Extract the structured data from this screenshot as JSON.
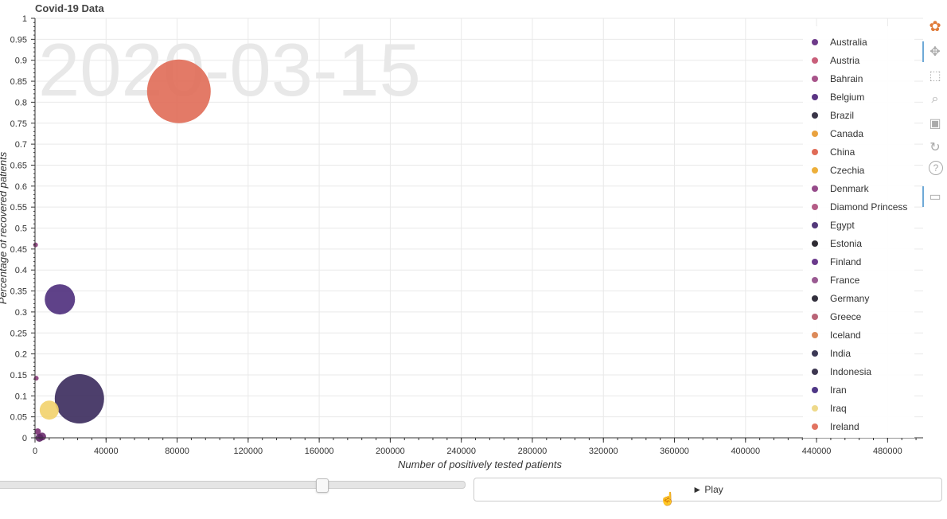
{
  "header": {
    "title": "Covid-19 Data"
  },
  "colors": {
    "grid": "#e9e9e9",
    "axis": "#333333",
    "watermark": "#e8e8e8",
    "slider_track": "#e5e5e5"
  },
  "chart_data": {
    "type": "scatter",
    "title": "Covid-19 Data",
    "date_watermark": "2020-03-15",
    "xlabel": "Number of positively tested patients",
    "ylabel": "Percentage of recovered patients",
    "xlim": [
      0,
      500000
    ],
    "ylim": [
      0,
      1
    ],
    "x_ticks": [
      0,
      40000,
      80000,
      120000,
      160000,
      200000,
      240000,
      280000,
      320000,
      360000,
      400000,
      440000,
      480000
    ],
    "y_ticks": [
      0,
      0.05,
      0.1,
      0.15,
      0.2,
      0.25,
      0.3,
      0.35,
      0.4,
      0.45,
      0.5,
      0.55,
      0.6,
      0.65,
      0.7,
      0.75,
      0.8,
      0.85,
      0.9,
      0.95,
      1
    ],
    "grid": true,
    "legend_position": "top-right",
    "points": [
      {
        "x": 81000,
        "y": 0.826,
        "size": 40,
        "color": "#e06b57"
      },
      {
        "x": 25000,
        "y": 0.093,
        "size": 31,
        "color": "#3a2a5c"
      },
      {
        "x": 14000,
        "y": 0.33,
        "size": 19,
        "color": "#4e2e7c"
      },
      {
        "x": 8000,
        "y": 0.066,
        "size": 12,
        "color": "#f2d16b"
      },
      {
        "x": 4000,
        "y": 0.003,
        "size": 5,
        "color": "#6a2b6e"
      },
      {
        "x": 1500,
        "y": 0.015,
        "size": 4,
        "color": "#7a2f72"
      },
      {
        "x": 700,
        "y": 0.142,
        "size": 3,
        "color": "#8a3b7a"
      },
      {
        "x": 300,
        "y": 0.46,
        "size": 3,
        "color": "#8a3b7a"
      },
      {
        "x": 2500,
        "y": 0.0,
        "size": 5,
        "color": "#5a2563"
      }
    ],
    "legend": [
      {
        "name": "Australia",
        "color": "#6e3b8a"
      },
      {
        "name": "Austria",
        "color": "#c95f7a"
      },
      {
        "name": "Bahrain",
        "color": "#a8548a"
      },
      {
        "name": "Belgium",
        "color": "#5b3584"
      },
      {
        "name": "Brazil",
        "color": "#3a3548"
      },
      {
        "name": "Canada",
        "color": "#e9a23f"
      },
      {
        "name": "China",
        "color": "#e06b57"
      },
      {
        "name": "Czechia",
        "color": "#edaf3a"
      },
      {
        "name": "Denmark",
        "color": "#964b8a"
      },
      {
        "name": "Diamond Princess",
        "color": "#b45c86"
      },
      {
        "name": "Egypt",
        "color": "#53397a"
      },
      {
        "name": "Estonia",
        "color": "#2e2b33"
      },
      {
        "name": "Finland",
        "color": "#6b3a8c"
      },
      {
        "name": "France",
        "color": "#9a5a92"
      },
      {
        "name": "Germany",
        "color": "#33303d"
      },
      {
        "name": "Greece",
        "color": "#b96477"
      },
      {
        "name": "Iceland",
        "color": "#dc8a5a"
      },
      {
        "name": "India",
        "color": "#3b3855"
      },
      {
        "name": "Indonesia",
        "color": "#3d3650"
      },
      {
        "name": "Iran",
        "color": "#4f3786"
      },
      {
        "name": "Iraq",
        "color": "#eed98a"
      },
      {
        "name": "Ireland",
        "color": "#e27361"
      }
    ]
  },
  "controls": {
    "play_label": "► Play",
    "slider_value": 0.69
  },
  "toolbar": {
    "tools": [
      {
        "icon": "bokeh-logo-icon"
      },
      {
        "icon": "pan-icon"
      },
      {
        "icon": "box-zoom-icon"
      },
      {
        "icon": "wheel-zoom-icon"
      },
      {
        "icon": "save-icon"
      },
      {
        "icon": "reset-icon"
      },
      {
        "icon": "help-icon"
      },
      {
        "icon": "hover-icon"
      }
    ]
  }
}
